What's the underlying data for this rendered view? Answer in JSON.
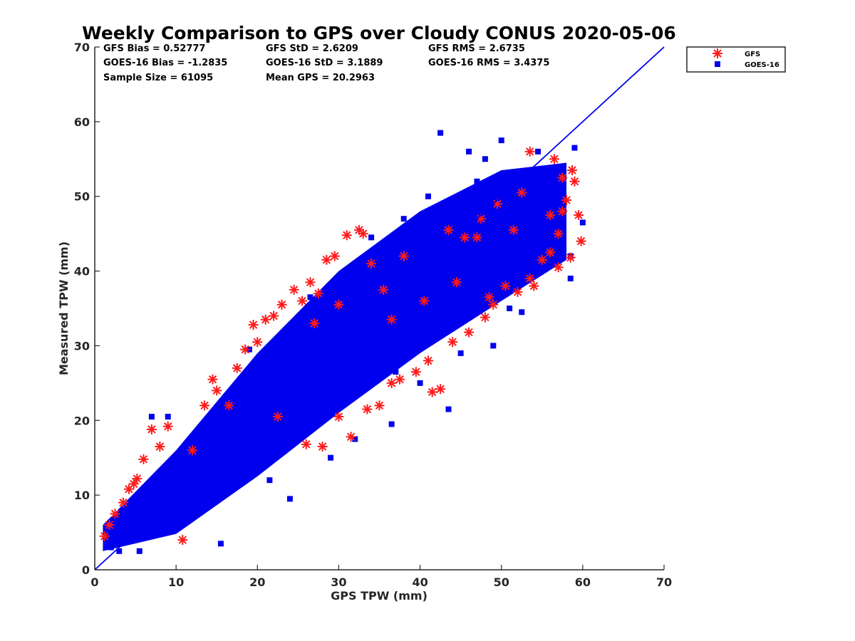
{
  "chart_data": {
    "type": "scatter",
    "title": "Weekly Comparison to GPS over Cloudy CONUS 2020-05-06",
    "xlabel": "GPS TPW (mm)",
    "ylabel": "Measured TPW (mm)",
    "xlim": [
      0,
      70
    ],
    "ylim": [
      0,
      70
    ],
    "xticks": [
      "0",
      "10",
      "20",
      "30",
      "40",
      "50",
      "60",
      "70"
    ],
    "yticks": [
      "0",
      "10",
      "20",
      "30",
      "40",
      "50",
      "60",
      "70"
    ],
    "grid": false,
    "legend_position": "outside-top-right",
    "reference_line": {
      "x": [
        0,
        70
      ],
      "y": [
        0,
        70
      ],
      "color": "#0000ee"
    },
    "stats": [
      [
        "GFS Bias = 0.52777",
        "GFS StD = 2.6209",
        "GFS RMS = 2.6735"
      ],
      [
        "GOES-16 Bias = -1.2835",
        "GOES-16 StD = 3.1889",
        "GOES-16 RMS = 3.4375"
      ],
      [
        "Sample Size = 61095",
        "Mean GPS = 20.2963",
        ""
      ]
    ],
    "series": [
      {
        "name": "GFS",
        "marker": "asterisk",
        "color": "#ff1a1a",
        "points": [
          [
            1.2,
            4.5
          ],
          [
            1.8,
            6.0
          ],
          [
            2.5,
            7.5
          ],
          [
            3.5,
            9.0
          ],
          [
            4.2,
            10.8
          ],
          [
            4.8,
            11.5
          ],
          [
            5.2,
            12.2
          ],
          [
            6.0,
            14.8
          ],
          [
            7.0,
            18.8
          ],
          [
            8.0,
            16.5
          ],
          [
            9.0,
            19.2
          ],
          [
            10.8,
            4.0
          ],
          [
            12.0,
            16.0
          ],
          [
            13.5,
            22.0
          ],
          [
            14.5,
            25.5
          ],
          [
            15.0,
            24.0
          ],
          [
            16.5,
            22.0
          ],
          [
            17.5,
            27.0
          ],
          [
            18.5,
            29.5
          ],
          [
            19.5,
            32.8
          ],
          [
            20.0,
            30.5
          ],
          [
            21.0,
            33.5
          ],
          [
            22.0,
            34.0
          ],
          [
            23.0,
            35.5
          ],
          [
            24.5,
            37.5
          ],
          [
            25.5,
            36.0
          ],
          [
            26.5,
            38.5
          ],
          [
            27.5,
            37.0
          ],
          [
            28.5,
            41.5
          ],
          [
            29.5,
            42.0
          ],
          [
            31.0,
            44.8
          ],
          [
            32.5,
            45.5
          ],
          [
            33.0,
            45.0
          ],
          [
            34.0,
            41.0
          ],
          [
            22.5,
            20.5
          ],
          [
            26.0,
            16.8
          ],
          [
            28.0,
            16.5
          ],
          [
            30.0,
            20.5
          ],
          [
            31.5,
            17.8
          ],
          [
            33.5,
            21.5
          ],
          [
            35.0,
            22.0
          ],
          [
            36.5,
            25.0
          ],
          [
            37.5,
            25.5
          ],
          [
            39.5,
            26.5
          ],
          [
            41.0,
            28.0
          ],
          [
            41.5,
            23.8
          ],
          [
            42.5,
            24.2
          ],
          [
            44.0,
            30.5
          ],
          [
            46.0,
            31.8
          ],
          [
            48.0,
            33.8
          ],
          [
            49.0,
            35.5
          ],
          [
            50.5,
            38.0
          ],
          [
            52.0,
            37.2
          ],
          [
            53.5,
            39.0
          ],
          [
            54.0,
            38.0
          ],
          [
            55.0,
            41.5
          ],
          [
            56.0,
            42.5
          ],
          [
            57.0,
            45.0
          ],
          [
            57.5,
            48.0
          ],
          [
            58.0,
            49.5
          ],
          [
            58.5,
            41.8
          ],
          [
            59.0,
            52.0
          ],
          [
            59.5,
            47.5
          ],
          [
            59.8,
            44.0
          ],
          [
            58.7,
            53.5
          ],
          [
            57.5,
            52.5
          ],
          [
            56.5,
            55.0
          ],
          [
            53.5,
            56.0
          ],
          [
            52.5,
            50.5
          ],
          [
            51.5,
            45.5
          ],
          [
            49.5,
            49.0
          ],
          [
            47.5,
            47.0
          ],
          [
            45.5,
            44.5
          ],
          [
            43.5,
            45.5
          ],
          [
            38.0,
            42.0
          ],
          [
            35.5,
            37.5
          ],
          [
            30.0,
            35.5
          ],
          [
            27.0,
            33.0
          ],
          [
            36.5,
            33.5
          ],
          [
            40.5,
            36.0
          ],
          [
            44.5,
            38.5
          ],
          [
            47.0,
            44.5
          ],
          [
            48.5,
            36.5
          ],
          [
            56.0,
            47.5
          ],
          [
            57.0,
            40.5
          ]
        ]
      },
      {
        "name": "GOES-16",
        "marker": "square",
        "color": "#0000ee",
        "points": [
          [
            2.0,
            3.0
          ],
          [
            3.0,
            2.5
          ],
          [
            5.5,
            2.5
          ],
          [
            7.0,
            20.5
          ],
          [
            9.0,
            20.5
          ],
          [
            15.5,
            3.5
          ],
          [
            19.0,
            29.5
          ],
          [
            21.5,
            12.0
          ],
          [
            24.0,
            9.5
          ],
          [
            26.5,
            36.5
          ],
          [
            29.0,
            15.0
          ],
          [
            32.0,
            17.5
          ],
          [
            34.0,
            44.5
          ],
          [
            36.5,
            19.5
          ],
          [
            38.0,
            47.0
          ],
          [
            40.0,
            25.0
          ],
          [
            41.0,
            50.0
          ],
          [
            42.5,
            58.5
          ],
          [
            43.5,
            21.5
          ],
          [
            45.0,
            29.0
          ],
          [
            46.0,
            56.0
          ],
          [
            47.0,
            52.0
          ],
          [
            48.0,
            55.0
          ],
          [
            49.0,
            30.0
          ],
          [
            50.0,
            57.5
          ],
          [
            51.0,
            35.0
          ],
          [
            52.5,
            34.5
          ],
          [
            54.5,
            56.0
          ],
          [
            55.5,
            50.0
          ],
          [
            57.0,
            44.5
          ],
          [
            58.5,
            39.0
          ],
          [
            59.0,
            56.5
          ],
          [
            60.0,
            46.5
          ],
          [
            58.5,
            42.0
          ],
          [
            56.5,
            41.5
          ],
          [
            54.0,
            44.0
          ],
          [
            52.0,
            40.0
          ],
          [
            50.0,
            49.5
          ],
          [
            46.5,
            47.5
          ],
          [
            44.0,
            42.5
          ],
          [
            40.5,
            31.5
          ],
          [
            37.0,
            26.5
          ],
          [
            35.0,
            39.0
          ],
          [
            30.5,
            23.0
          ],
          [
            27.0,
            20.5
          ],
          [
            24.5,
            27.0
          ],
          [
            22.0,
            25.5
          ],
          [
            20.5,
            19.0
          ],
          [
            18.0,
            23.0
          ],
          [
            16.0,
            21.5
          ],
          [
            13.5,
            14.5
          ],
          [
            11.0,
            12.5
          ],
          [
            9.5,
            10.0
          ],
          [
            8.0,
            9.0
          ],
          [
            6.5,
            7.5
          ],
          [
            4.5,
            5.0
          ],
          [
            3.5,
            4.5
          ],
          [
            12.5,
            9.0
          ],
          [
            17.0,
            12.5
          ],
          [
            23.0,
            18.0
          ],
          [
            28.5,
            25.5
          ],
          [
            33.0,
            30.5
          ],
          [
            39.0,
            35.5
          ],
          [
            43.0,
            39.5
          ],
          [
            48.5,
            44.0
          ],
          [
            53.0,
            48.5
          ]
        ]
      }
    ],
    "bands": [
      {
        "lo": [
          [
            1,
            2.5
          ],
          [
            10,
            4.8
          ],
          [
            20,
            12.5
          ],
          [
            30,
            21.0
          ],
          [
            40,
            29.0
          ],
          [
            50,
            36.0
          ],
          [
            58,
            41.5
          ]
        ],
        "hi": [
          [
            1,
            6.0
          ],
          [
            10,
            16.0
          ],
          [
            20,
            29.0
          ],
          [
            30,
            40.0
          ],
          [
            40,
            48.0
          ],
          [
            50,
            53.5
          ],
          [
            58,
            54.5
          ]
        ]
      }
    ]
  }
}
